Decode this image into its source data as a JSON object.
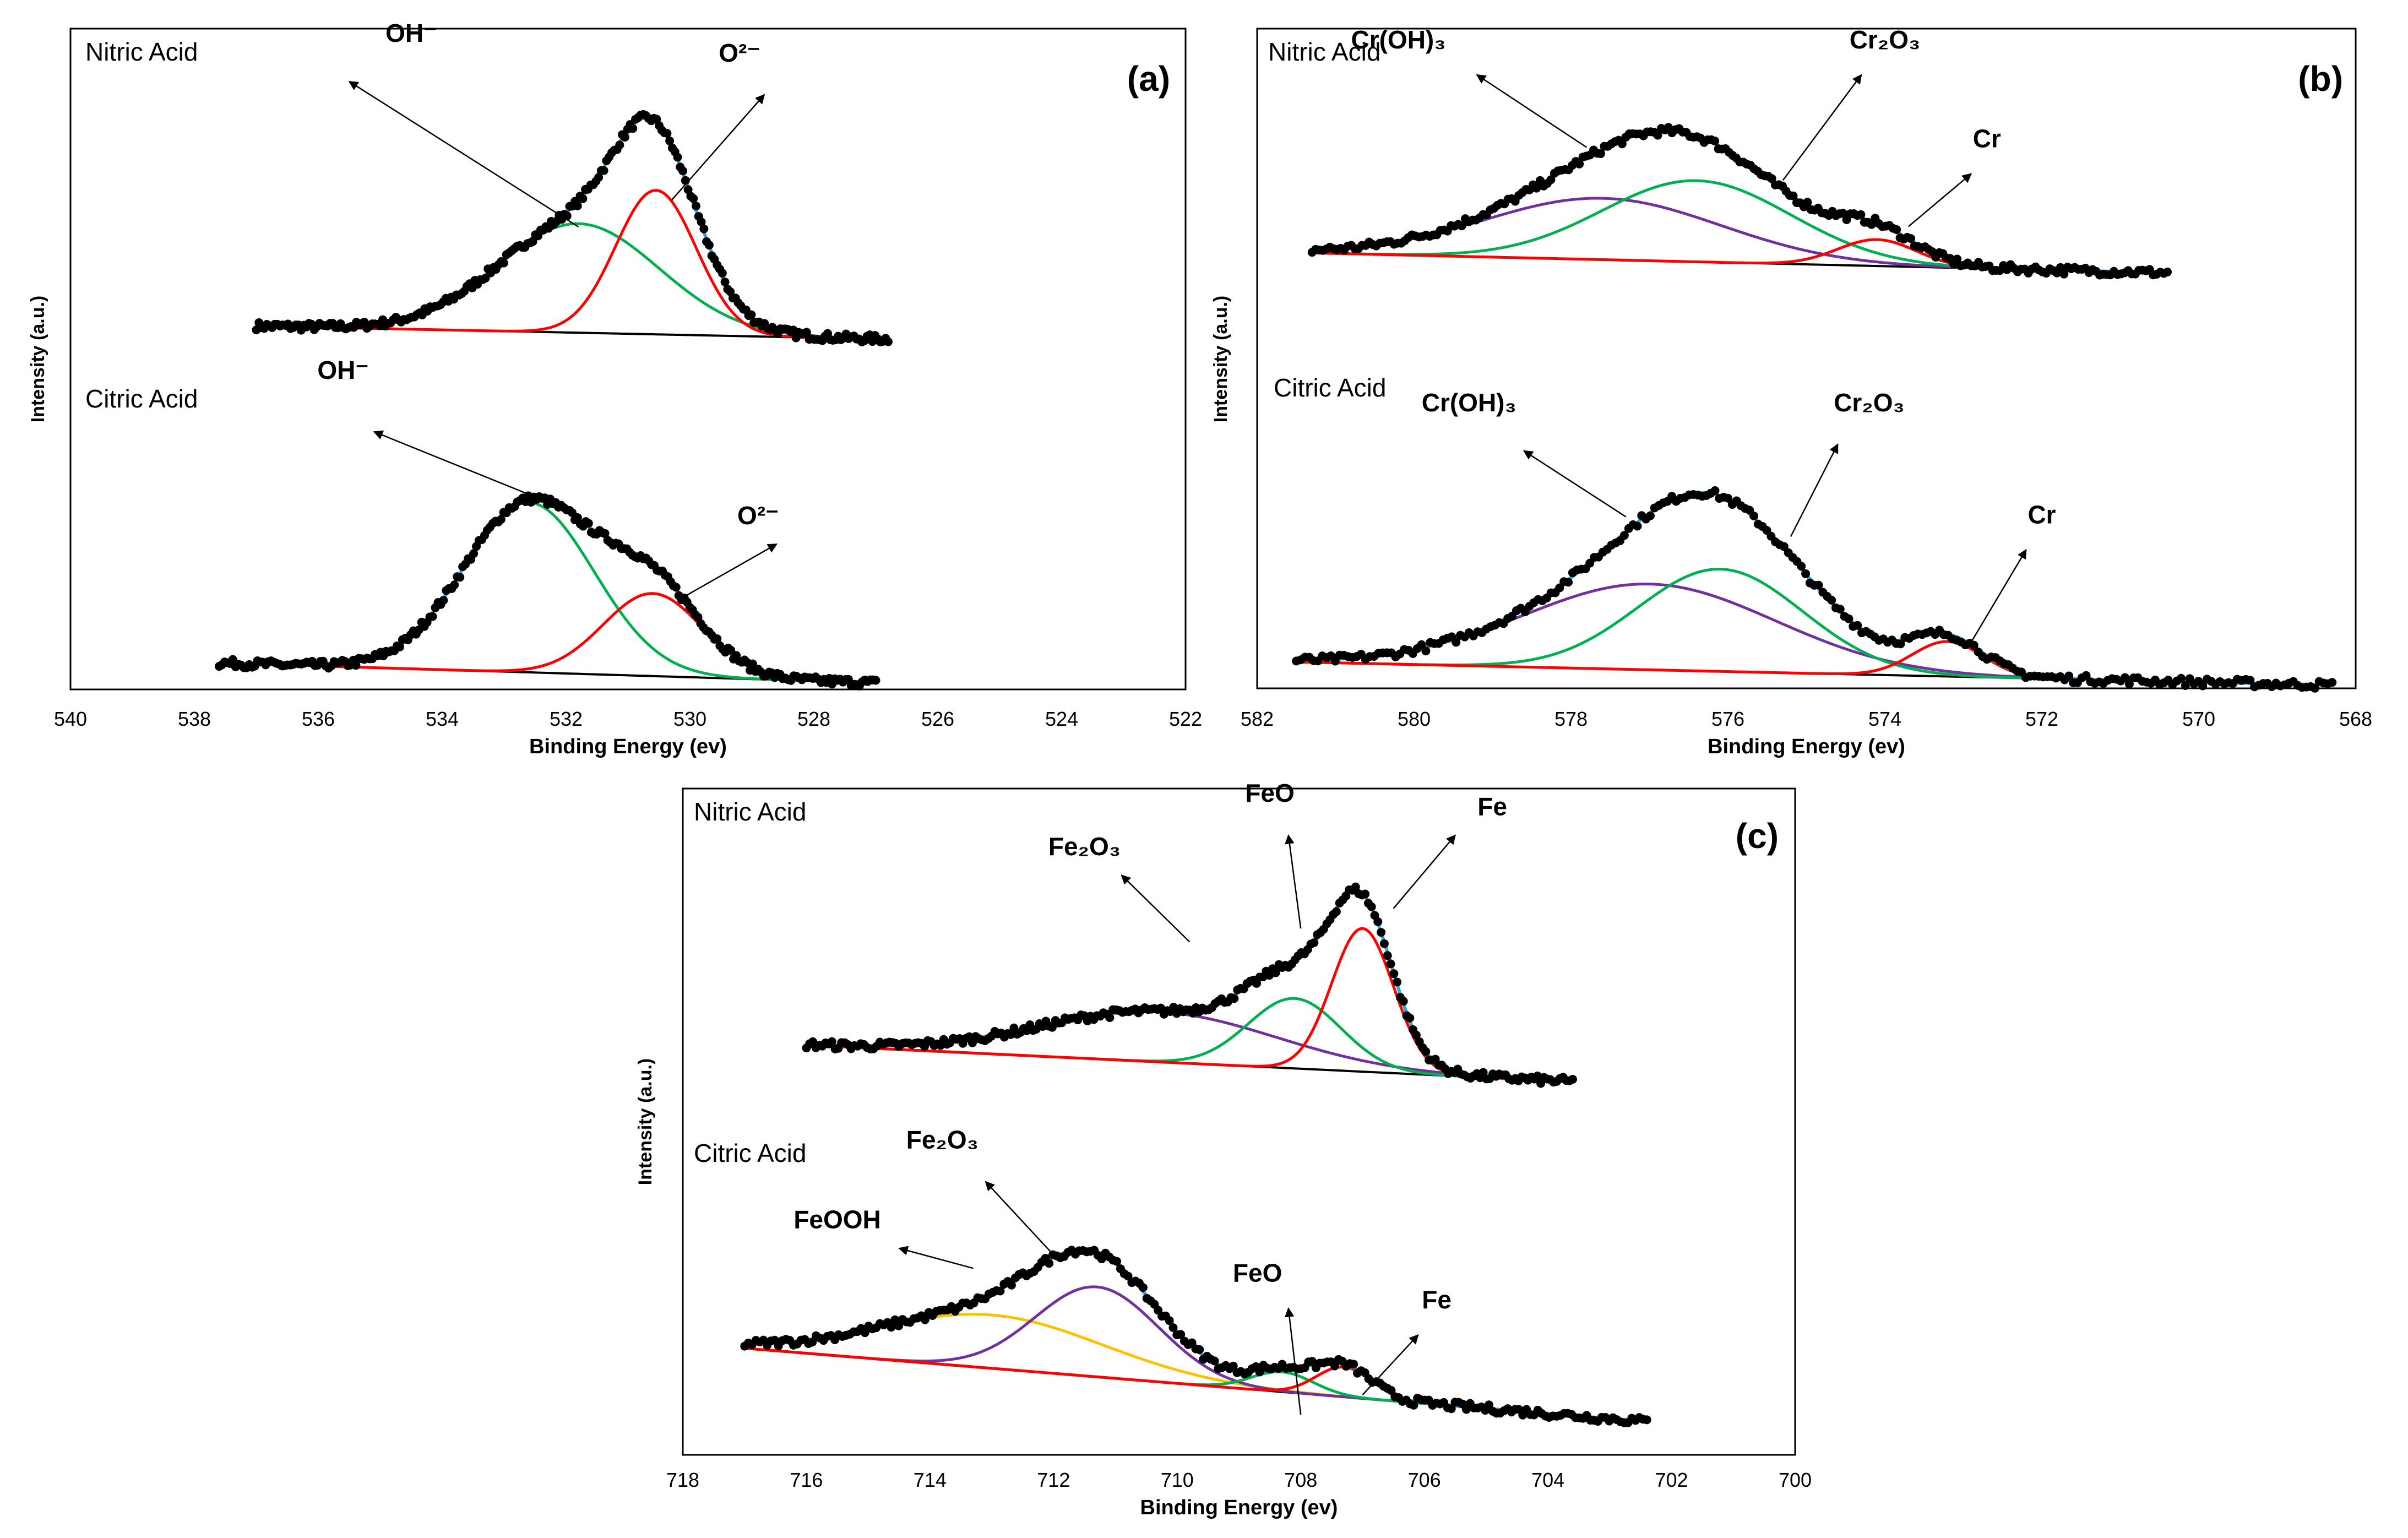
{
  "chart_data": [
    {
      "panel": "(a)",
      "type": "line",
      "xlabel": "Binding Energy (ev)",
      "ylabel": "Intensity (a.u.)",
      "xlim": [
        540,
        522
      ],
      "xticks": [
        "540",
        "538",
        "536",
        "534",
        "532",
        "530",
        "528",
        "526",
        "524",
        "522"
      ],
      "samples": [
        {
          "name": "Nitric Acid",
          "xrange": [
            537,
            526.8
          ],
          "offset": 0.55,
          "background": [
            0.0,
            -0.02
          ],
          "components": [
            {
              "name": "OH-",
              "center": 531.8,
              "height": 0.165,
              "width": 1.3,
              "color": "#00b050"
            },
            {
              "name": "O2-",
              "center": 530.55,
              "height": 0.218,
              "width": 0.65,
              "color": "#ff0000"
            }
          ],
          "labels": [
            {
              "key": "OH",
              "text": "OH⁻",
              "tx": 534.5,
              "ty": 0.98,
              "ax": 531.8,
              "ay": 0.7,
              "hx": 535.5,
              "hy": 0.92
            },
            {
              "key": "O2",
              "text": "O²⁻",
              "tx": 529.2,
              "ty": 0.95,
              "ax": 530.3,
              "ay": 0.74,
              "hx": 528.8,
              "hy": 0.9
            }
          ]
        },
        {
          "name": "Citric Acid",
          "xrange": [
            537.6,
            527
          ],
          "offset": 0.04,
          "background": [
            0.0,
            -0.03
          ],
          "components": [
            {
              "name": "OH-",
              "center": 532.6,
              "height": 0.257,
              "width": 1.05,
              "color": "#00b050"
            },
            {
              "name": "O2-",
              "center": 530.6,
              "height": 0.125,
              "width": 0.8,
              "color": "#ff0000"
            }
          ],
          "labels": [
            {
              "key": "OH",
              "text": "OH⁻",
              "tx": 535.6,
              "ty": 0.47,
              "ax": 532.2,
              "ay": 0.28,
              "hx": 535.1,
              "hy": 0.39
            },
            {
              "key": "O2",
              "text": "O²⁻",
              "tx": 528.9,
              "ty": 0.25,
              "ax": 530.1,
              "ay": 0.14,
              "hx": 528.6,
              "hy": 0.22
            }
          ]
        }
      ]
    },
    {
      "panel": "(b)",
      "type": "line",
      "xlabel": "Binding Energy (ev)",
      "ylabel": "Intensity (a.u.)",
      "xlim": [
        582,
        568
      ],
      "xticks": [
        "582",
        "580",
        "578",
        "576",
        "574",
        "572",
        "570",
        "568"
      ],
      "samples": [
        {
          "name": "Nitric Acid",
          "xrange": [
            581.3,
            570.4
          ],
          "offset": 0.66,
          "background": [
            0.0,
            -0.03
          ],
          "components": [
            {
              "name": "Cr(OH)3",
              "center": 577.6,
              "height": 0.093,
              "width": 1.5,
              "color": "#7030a0"
            },
            {
              "name": "Cr2O3",
              "center": 576.4,
              "height": 0.123,
              "width": 1.2,
              "color": "#00b050"
            },
            {
              "name": "Cr",
              "center": 574.1,
              "height": 0.04,
              "width": 0.5,
              "color": "#ff0000"
            }
          ],
          "labels": [
            {
              "key": "CrOH3",
              "text": "Cr(OH)₃",
              "tx": 580.2,
              "ty": 0.97,
              "ax": 577.8,
              "ay": 0.82,
              "hx": 579.2,
              "hy": 0.93
            },
            {
              "key": "Cr2O3",
              "text": "Cr₂O₃",
              "tx": 574.0,
              "ty": 0.97,
              "ax": 575.3,
              "ay": 0.77,
              "hx": 574.3,
              "hy": 0.93
            },
            {
              "key": "Cr",
              "text": "Cr",
              "tx": 572.7,
              "ty": 0.82,
              "ax": 573.7,
              "ay": 0.7,
              "hx": 572.9,
              "hy": 0.78
            }
          ]
        },
        {
          "name": "Citric Acid",
          "xrange": [
            581.5,
            568.3
          ],
          "offset": 0.04,
          "background": [
            0.0,
            -0.035
          ],
          "components": [
            {
              "name": "Cr(OH)3",
              "center": 577.0,
              "height": 0.13,
              "width": 1.6,
              "color": "#7030a0"
            },
            {
              "name": "Cr2O3",
              "center": 576.1,
              "height": 0.155,
              "width": 1.05,
              "color": "#00b050"
            },
            {
              "name": "Cr",
              "center": 573.2,
              "height": 0.053,
              "width": 0.45,
              "color": "#ff0000"
            }
          ],
          "labels": [
            {
              "key": "CrOH3",
              "text": "Cr(OH)₃",
              "tx": 579.3,
              "ty": 0.42,
              "ax": 577.3,
              "ay": 0.26,
              "hx": 578.6,
              "hy": 0.36
            },
            {
              "key": "Cr2O3",
              "text": "Cr₂O₃",
              "tx": 574.2,
              "ty": 0.42,
              "ax": 575.2,
              "ay": 0.23,
              "hx": 574.6,
              "hy": 0.37
            },
            {
              "key": "Cr",
              "text": "Cr",
              "tx": 572.0,
              "ty": 0.25,
              "ax": 572.9,
              "ay": 0.07,
              "hx": 572.2,
              "hy": 0.21
            }
          ]
        }
      ]
    },
    {
      "panel": "(c)",
      "type": "line",
      "xlabel": "Binding Energy (ev)",
      "ylabel": "Intensity (a.u.)",
      "xlim": [
        718,
        700
      ],
      "xticks": [
        "718",
        "716",
        "714",
        "712",
        "710",
        "708",
        "706",
        "704",
        "702",
        "700"
      ],
      "samples": [
        {
          "name": "Nitric Acid",
          "xrange": [
            716,
            703.6
          ],
          "offset": 0.56,
          "background": [
            0.055,
            0.0
          ],
          "components": [
            {
              "name": "Fe2O3",
              "center": 710.3,
              "height": 0.075,
              "width": 1.9,
              "color": "#7030a0"
            },
            {
              "name": "FeO",
              "center": 708.1,
              "height": 0.105,
              "width": 0.75,
              "color": "#00b050"
            },
            {
              "name": "Fe",
              "center": 707.0,
              "height": 0.215,
              "width": 0.5,
              "color": "#ff0000"
            }
          ],
          "labels": [
            {
              "key": "Fe2O3",
              "text": "Fe₂O₃",
              "tx": 711.5,
              "ty": 0.9,
              "ax": 709.8,
              "ay": 0.77,
              "hx": 710.9,
              "hy": 0.87
            },
            {
              "key": "FeO",
              "text": "FeO",
              "tx": 708.5,
              "ty": 0.98,
              "ax": 708.0,
              "ay": 0.79,
              "hx": 708.2,
              "hy": 0.93
            },
            {
              "key": "Fe",
              "text": "Fe",
              "tx": 704.9,
              "ty": 0.96,
              "ax": 706.5,
              "ay": 0.82,
              "hx": 705.5,
              "hy": 0.93
            }
          ]
        },
        {
          "name": "Citric Acid",
          "xrange": [
            717,
            702.4
          ],
          "offset": 0.05,
          "background": [
            0.11,
            0.0
          ],
          "components": [
            {
              "name": "FeOOH",
              "center": 713.0,
              "height": 0.08,
              "width": 1.8,
              "color": "#ffc000"
            },
            {
              "name": "Fe2O3",
              "center": 711.3,
              "height": 0.135,
              "width": 1.0,
              "color": "#7030a0"
            },
            {
              "name": "FeO",
              "center": 708.3,
              "height": 0.03,
              "width": 0.5,
              "color": "#00b050"
            },
            {
              "name": "Fe",
              "center": 707.3,
              "height": 0.045,
              "width": 0.45,
              "color": "#ff0000"
            }
          ],
          "labels": [
            {
              "key": "FeOOH",
              "text": "FeOOH",
              "tx": 715.5,
              "ty": 0.34,
              "ax": 713.3,
              "ay": 0.28,
              "hx": 714.5,
              "hy": 0.31
            },
            {
              "key": "Fe2O3",
              "text": "Fe₂O₃",
              "tx": 713.8,
              "ty": 0.46,
              "ax": 711.9,
              "ay": 0.29,
              "hx": 713.1,
              "hy": 0.41
            },
            {
              "key": "FeO",
              "text": "FeO",
              "tx": 708.7,
              "ty": 0.26,
              "ax": 708.0,
              "ay": 0.06,
              "hx": 708.2,
              "hy": 0.22
            },
            {
              "key": "Fe",
              "text": "Fe",
              "tx": 705.8,
              "ty": 0.22,
              "ax": 707.0,
              "ay": 0.09,
              "hx": 706.1,
              "hy": 0.18
            }
          ]
        }
      ]
    }
  ],
  "colors": {
    "data": "#000000",
    "envelope": "#29a8e0",
    "background": "#000000",
    "frame": "#000000"
  }
}
